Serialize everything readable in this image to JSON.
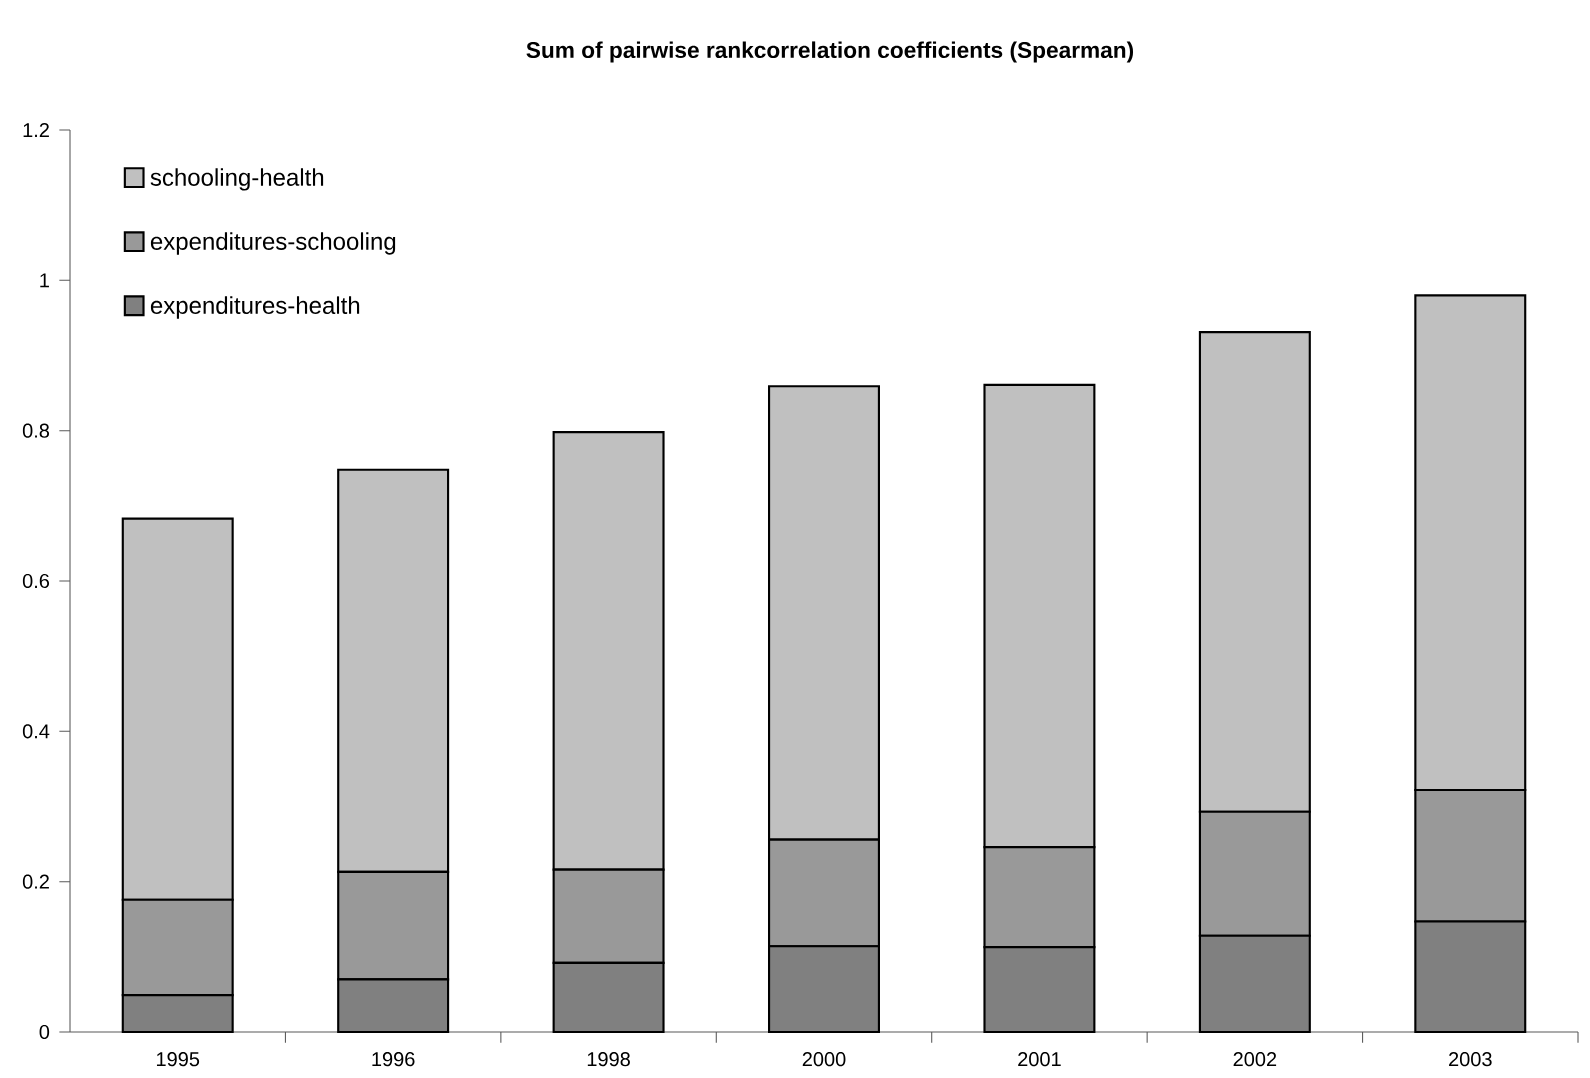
{
  "chart_data": {
    "type": "bar",
    "stacked": true,
    "title": "Sum of pairwise rankcorrelation coefficients (Spearman)",
    "categories": [
      "1995",
      "1996",
      "1998",
      "2000",
      "2001",
      "2002",
      "2003"
    ],
    "series": [
      {
        "name": "expenditures-health",
        "color": "#808080",
        "values": [
          0.049,
          0.07,
          0.092,
          0.114,
          0.113,
          0.128,
          0.147
        ]
      },
      {
        "name": "expenditures-schooling",
        "color": "#999999",
        "values": [
          0.127,
          0.143,
          0.124,
          0.142,
          0.133,
          0.165,
          0.175
        ]
      },
      {
        "name": "schooling-health",
        "color": "#c0c0c0",
        "values": [
          0.507,
          0.535,
          0.582,
          0.603,
          0.615,
          0.638,
          0.658
        ]
      }
    ],
    "ylim": [
      0,
      1.2
    ],
    "yticks": [
      0,
      0.2,
      0.4,
      0.6,
      0.8,
      1,
      1.2
    ],
    "legend": "top left"
  }
}
